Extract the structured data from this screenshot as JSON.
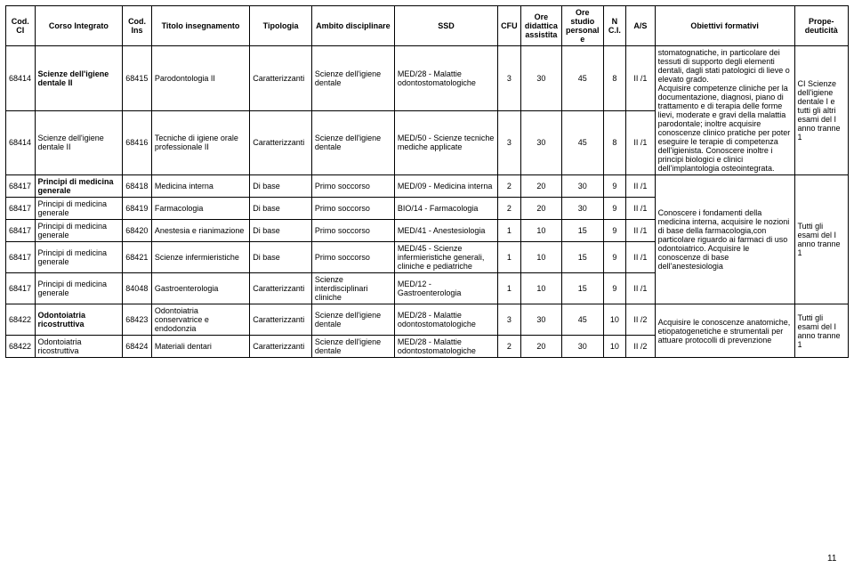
{
  "headers": {
    "codCI": "Cod.\nCI",
    "corso": "Corso Integrato",
    "codIns": "Cod.\nIns",
    "titolo": "Titolo\ninsegnamento",
    "tipologia": "Tipologia",
    "ambito": "Ambito\ndisciplinare",
    "ssd": "SSD",
    "cfu": "CFU",
    "oreDid": "Ore didattica assistita",
    "oreStu": "Ore studio personale",
    "nci": "N\nC.I.",
    "as": "A/S",
    "obiettivi": "Obiettivi formativi",
    "prope": "Prope-\ndeuticità"
  },
  "group1": {
    "r1": {
      "codCI": "68414",
      "corsoLabel": "Scienze dell'igiene dentale II",
      "codIns": "68415",
      "titolo": "Parodontologia II",
      "tipologia": "Caratterizzanti",
      "ambito": "Scienze dell'igiene dentale",
      "ssd": "MED/28 - Malattie odontostomatologiche",
      "cfu": "3",
      "oreDid": "30",
      "oreStu": "45",
      "nci": "8",
      "as": "II /1"
    },
    "r2": {
      "codCI": "68414",
      "corso": "Scienze dell'igiene dentale II",
      "codIns": "68416",
      "titolo": "Tecniche di igiene orale professionale II",
      "tipologia": "Caratterizzanti",
      "ambito": "Scienze dell'igiene dentale",
      "ssd": "MED/50 - Scienze tecniche mediche applicate",
      "cfu": "3",
      "oreDid": "30",
      "oreStu": "45",
      "nci": "8",
      "as": "II /1"
    },
    "obiettivi": "stomatognatiche, in particolare dei tessuti di supporto degli elementi dentali, dagli stati patologici di lieve o elevato grado.\nAcquisire competenze cliniche per la documentazione, diagnosi, piano di trattamento e di terapia delle forme lievi, moderate e gravi della malattia parodontale; inoltre acquisire conoscenze clinico pratiche per poter eseguire le terapie di competenza dell'igienista. Conoscere inoltre i principi biologici e clinici dell'implantologia osteointegrata.",
    "prope": "CI Scienze dell'igiene dentale I e tutti gli altri esami del I anno tranne 1"
  },
  "group2": {
    "r1": {
      "codCI": "68417",
      "corsoLabel": "Principi di medicina generale",
      "codIns": "68418",
      "titolo": "Medicina interna",
      "tipologia": "Di base",
      "ambito": "Primo soccorso",
      "ssd": "MED/09 - Medicina interna",
      "cfu": "2",
      "oreDid": "20",
      "oreStu": "30",
      "nci": "9",
      "as": "II /1"
    },
    "r2": {
      "codCI": "68417",
      "corso": "Principi di medicina generale",
      "codIns": "68419",
      "titolo": "Farmacologia",
      "tipologia": "Di base",
      "ambito": "Primo soccorso",
      "ssd": "BIO/14 - Farmacologia",
      "cfu": "2",
      "oreDid": "20",
      "oreStu": "30",
      "nci": "9",
      "as": "II /1"
    },
    "r3": {
      "codCI": "68417",
      "corso": "Principi di medicina generale",
      "codIns": "68420",
      "titolo": "Anestesia e rianimazione",
      "tipologia": "Di base",
      "ambito": "Primo soccorso",
      "ssd": "MED/41 - Anestesiologia",
      "cfu": "1",
      "oreDid": "10",
      "oreStu": "15",
      "nci": "9",
      "as": "II /1"
    },
    "r4": {
      "codCI": "68417",
      "corso": "Principi di medicina generale",
      "codIns": "68421",
      "titolo": "Scienze infermieristiche",
      "tipologia": "Di base",
      "ambito": "Primo soccorso",
      "ssd": "MED/45 - Scienze infermieristiche generali, cliniche e pediatriche",
      "cfu": "1",
      "oreDid": "10",
      "oreStu": "15",
      "nci": "9",
      "as": "II /1"
    },
    "r5": {
      "codCI": "68417",
      "corso": "Principi di medicina generale",
      "codIns": "84048",
      "titolo": "Gastroenterologia",
      "tipologia": "Caratterizzanti",
      "ambito": "Scienze interdisciplinari cliniche",
      "ssd": "MED/12 - Gastroenterologia",
      "cfu": "1",
      "oreDid": "10",
      "oreStu": "15",
      "nci": "9",
      "as": "II /1"
    },
    "obiettivi": "Conoscere i fondamenti della medicina interna, acquisire le nozioni di base della farmacologia,con particolare riguardo ai farmaci di uso odontoiatrico. Acquisire le conoscenze di base dell'anestesiologia",
    "prope": "Tutti gli esami del I anno tranne 1"
  },
  "group3": {
    "r1": {
      "codCI": "68422",
      "corsoLabel": "Odontoiatria ricostruttiva",
      "codIns": "68423",
      "titolo": "Odontoiatria conservatrice e endodonzia",
      "tipologia": "Caratterizzanti",
      "ambito": "Scienze dell'igiene dentale",
      "ssd": "MED/28 - Malattie odontostomatologiche",
      "cfu": "3",
      "oreDid": "30",
      "oreStu": "45",
      "nci": "10",
      "as": "II /2"
    },
    "r2": {
      "codCI": "68422",
      "corso": "Odontoiatria ricostruttiva",
      "codIns": "68424",
      "titolo": "Materiali dentari",
      "tipologia": "Caratterizzanti",
      "ambito": "Scienze dell'igiene dentale",
      "ssd": "MED/28 - Malattie odontostomatologiche",
      "cfu": "2",
      "oreDid": "20",
      "oreStu": "30",
      "nci": "10",
      "as": "II /2"
    },
    "obiettivi": "Acquisire le conoscenze anatomiche, etiopatogenetiche e strumentali per attuare protocolli di prevenzione",
    "prope": "Tutti gli esami del I anno tranne 1"
  },
  "pageNumber": "11"
}
